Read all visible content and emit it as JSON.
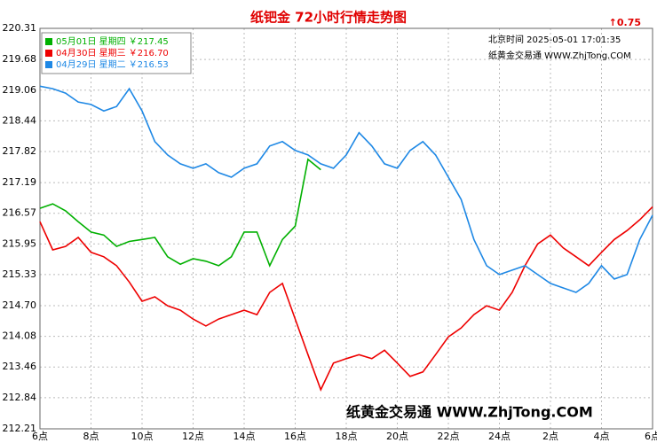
{
  "chart_data": {
    "type": "line",
    "title": "纸钯金  72小时行情走势图",
    "change": "↑0.75",
    "time_note": "北京时间 2025-05-01 17:01:35",
    "source_note": "纸黄金交易通 WWW.ZhjTong.COM",
    "watermark": "纸黄金交易通 WWW.ZhjTong.COM",
    "legend": "top-left",
    "grid": true,
    "xlim": [
      0,
      24
    ],
    "xticks": [
      {
        "value": 0,
        "label": "6点"
      },
      {
        "value": 2,
        "label": "8点"
      },
      {
        "value": 4,
        "label": "10点"
      },
      {
        "value": 6,
        "label": "12点"
      },
      {
        "value": 8,
        "label": "14点"
      },
      {
        "value": 10,
        "label": "16点"
      },
      {
        "value": 12,
        "label": "18点"
      },
      {
        "value": 14,
        "label": "20点"
      },
      {
        "value": 16,
        "label": "22点"
      },
      {
        "value": 18,
        "label": "24点"
      },
      {
        "value": 20,
        "label": "2点"
      },
      {
        "value": 22,
        "label": "4点"
      },
      {
        "value": 24,
        "label": "6点"
      }
    ],
    "ylim": [
      212.21,
      220.31
    ],
    "yticks": [
      220.31,
      219.68,
      219.06,
      218.44,
      217.82,
      217.19,
      216.57,
      215.95,
      215.33,
      {
        "value": 214.7,
        "label": "214.70"
      },
      214.08,
      213.46,
      212.84,
      212.21
    ],
    "x": [
      0,
      0.5,
      1,
      1.5,
      2,
      2.5,
      3,
      3.5,
      4,
      4.5,
      5,
      5.5,
      6,
      6.5,
      7,
      7.5,
      8,
      8.5,
      9,
      9.5,
      10,
      10.5,
      11,
      11.5,
      12,
      12.5,
      13,
      13.5,
      14,
      14.5,
      15,
      15.5,
      16,
      16.5,
      17,
      17.5,
      18,
      18.5,
      19,
      19.5,
      20,
      20.5,
      21,
      21.5,
      22,
      22.5,
      23,
      23.5,
      24
    ],
    "series": [
      {
        "name": "05月01日 星期四 ￥217.45",
        "color": "#00b000",
        "values": [
          216.67,
          216.76,
          216.62,
          216.4,
          216.19,
          216.13,
          215.9,
          216.0,
          216.04,
          216.08,
          215.69,
          215.54,
          215.65,
          215.6,
          215.51,
          215.69,
          216.19,
          216.19,
          215.51,
          216.04,
          216.31,
          217.66,
          217.45,
          null,
          null,
          null,
          null,
          null,
          null,
          null,
          null,
          null,
          null,
          null,
          null,
          null,
          null,
          null,
          null,
          null,
          null,
          null,
          null,
          null,
          null,
          null,
          null,
          null,
          null
        ]
      },
      {
        "name": "04月30日 星期三 ￥216.70",
        "color": "#ee0000",
        "values": [
          216.4,
          215.83,
          215.9,
          216.08,
          215.78,
          215.69,
          215.51,
          215.18,
          214.79,
          214.88,
          214.7,
          214.61,
          214.43,
          214.29,
          214.43,
          214.52,
          214.61,
          214.52,
          214.97,
          215.15,
          214.43,
          213.71,
          213.0,
          213.54,
          213.63,
          213.71,
          213.63,
          213.8,
          213.54,
          213.27,
          213.36,
          213.71,
          214.07,
          214.25,
          214.52,
          214.7,
          214.61,
          214.97,
          215.51,
          215.95,
          216.13,
          215.87,
          215.69,
          215.51,
          215.78,
          216.04,
          216.22,
          216.44,
          216.7
        ]
      },
      {
        "name": "04月29日 星期二 ￥216.53",
        "color": "#1e88e5",
        "values": [
          219.14,
          219.09,
          219.0,
          218.82,
          218.77,
          218.64,
          218.73,
          219.09,
          218.64,
          218.02,
          217.75,
          217.57,
          217.48,
          217.57,
          217.39,
          217.3,
          217.48,
          217.57,
          217.93,
          218.02,
          217.84,
          217.75,
          217.57,
          217.48,
          217.75,
          218.2,
          217.93,
          217.57,
          217.48,
          217.84,
          218.02,
          217.75,
          217.3,
          216.85,
          216.04,
          215.51,
          215.33,
          215.42,
          215.51,
          215.33,
          215.15,
          215.06,
          214.97,
          215.15,
          215.51,
          215.24,
          215.33,
          216.04,
          216.53
        ]
      }
    ]
  }
}
